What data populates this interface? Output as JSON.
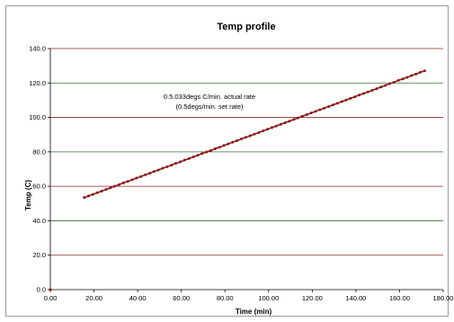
{
  "chart_data": {
    "type": "scatter",
    "title": "Temp profile",
    "xlabel": "Time (min)",
    "ylabel": "Temp (C)",
    "xlim": [
      0,
      180
    ],
    "ylim": [
      0,
      140
    ],
    "x_ticks": [
      0,
      20,
      40,
      60,
      80,
      100,
      120,
      140,
      160,
      180
    ],
    "x_tick_labels": [
      "0.00",
      "20.00",
      "40.00",
      "60.00",
      "80.00",
      "100.00",
      "120.00",
      "140.00",
      "160.00",
      "180.00"
    ],
    "y_ticks": [
      0,
      20,
      40,
      60,
      80,
      100,
      120,
      140
    ],
    "y_tick_labels": [
      "0.0",
      "20.0",
      "40.0",
      "60.0",
      "80.0",
      "100.0",
      "120.0",
      "140.0"
    ],
    "grid": "horizontal",
    "annotation": [
      "0.5.033degs C/min. actual rate",
      "(0.5degs/min. set rate)"
    ],
    "colors": {
      "series_line": "#8b1a1a",
      "series_marker": "#8b1a1a",
      "grid_major": "#3a6b3a",
      "grid_minor": "#8a2a2a",
      "axis": "#000000"
    },
    "series": [
      {
        "points": [
          [
            0.0,
            0.0
          ],
          [
            15.5,
            53.5
          ],
          [
            17.5,
            54.4
          ],
          [
            19.5,
            55.3
          ],
          [
            21.5,
            56.3
          ],
          [
            23.5,
            57.2
          ],
          [
            25.5,
            58.2
          ],
          [
            27.5,
            59.1
          ],
          [
            29.5,
            60.1
          ],
          [
            31.5,
            61.0
          ],
          [
            33.5,
            62.0
          ],
          [
            35.5,
            62.9
          ],
          [
            37.5,
            63.8
          ],
          [
            39.5,
            64.8
          ],
          [
            41.5,
            65.7
          ],
          [
            43.5,
            66.7
          ],
          [
            45.5,
            67.6
          ],
          [
            47.5,
            68.6
          ],
          [
            49.5,
            69.5
          ],
          [
            51.5,
            70.5
          ],
          [
            53.5,
            71.4
          ],
          [
            55.5,
            72.3
          ],
          [
            57.5,
            73.3
          ],
          [
            59.5,
            74.2
          ],
          [
            61.5,
            75.2
          ],
          [
            63.5,
            76.1
          ],
          [
            65.5,
            77.1
          ],
          [
            67.5,
            78.0
          ],
          [
            69.5,
            79.0
          ],
          [
            71.5,
            79.9
          ],
          [
            73.5,
            80.8
          ],
          [
            75.5,
            81.8
          ],
          [
            77.5,
            82.7
          ],
          [
            79.5,
            83.7
          ],
          [
            81.5,
            84.6
          ],
          [
            83.5,
            85.6
          ],
          [
            85.5,
            86.5
          ],
          [
            87.5,
            87.5
          ],
          [
            89.5,
            88.4
          ],
          [
            91.5,
            89.3
          ],
          [
            93.5,
            90.3
          ],
          [
            95.5,
            91.2
          ],
          [
            97.5,
            92.2
          ],
          [
            99.5,
            93.1
          ],
          [
            101.5,
            94.1
          ],
          [
            103.5,
            95.0
          ],
          [
            105.5,
            96.0
          ],
          [
            107.5,
            96.9
          ],
          [
            109.5,
            97.8
          ],
          [
            111.5,
            98.8
          ],
          [
            113.5,
            99.7
          ],
          [
            115.5,
            100.7
          ],
          [
            117.5,
            101.6
          ],
          [
            119.5,
            102.6
          ],
          [
            121.5,
            103.5
          ],
          [
            123.5,
            104.5
          ],
          [
            125.5,
            105.4
          ],
          [
            127.5,
            106.3
          ],
          [
            129.5,
            107.3
          ],
          [
            131.5,
            108.2
          ],
          [
            133.5,
            109.2
          ],
          [
            135.5,
            110.1
          ],
          [
            137.5,
            111.1
          ],
          [
            139.5,
            112.0
          ],
          [
            141.5,
            113.0
          ],
          [
            143.5,
            113.9
          ],
          [
            145.5,
            114.8
          ],
          [
            147.5,
            115.8
          ],
          [
            149.5,
            116.7
          ],
          [
            151.5,
            117.7
          ],
          [
            153.5,
            118.6
          ],
          [
            155.5,
            119.6
          ],
          [
            157.5,
            120.5
          ],
          [
            159.5,
            121.5
          ],
          [
            161.5,
            122.4
          ],
          [
            163.5,
            123.3
          ],
          [
            165.5,
            124.3
          ],
          [
            167.5,
            125.2
          ],
          [
            169.5,
            126.2
          ],
          [
            171.5,
            127.1
          ]
        ]
      }
    ]
  }
}
